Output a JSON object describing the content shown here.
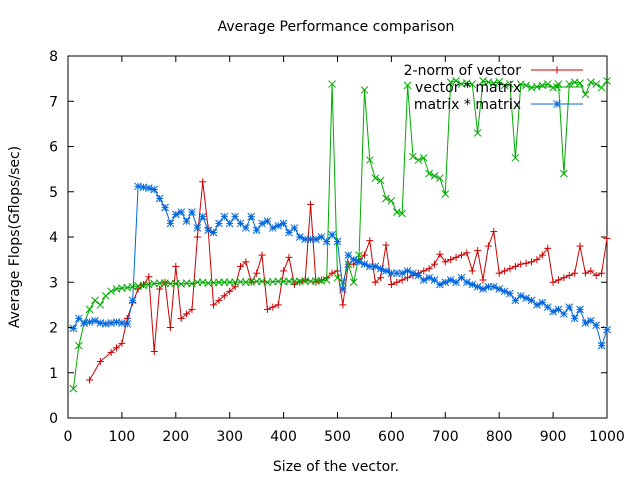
{
  "chart_data": {
    "type": "line",
    "title": "Average Performance comparison",
    "xlabel": "Size of the vector.",
    "ylabel": "Average Flops(Gflops/sec)",
    "xlim": [
      0,
      1000
    ],
    "ylim": [
      0,
      8
    ],
    "x_ticks": [
      0,
      100,
      200,
      300,
      400,
      500,
      600,
      700,
      800,
      900,
      1000
    ],
    "y_ticks": [
      0,
      1,
      2,
      3,
      4,
      5,
      6,
      7,
      8
    ],
    "grid": false,
    "legend_position": "top-right",
    "series": [
      {
        "name": "2-norm of vector",
        "color": "#cc0000",
        "marker": "plus",
        "x": [
          40,
          60,
          80,
          90,
          100,
          110,
          120,
          130,
          140,
          150,
          160,
          170,
          180,
          190,
          200,
          210,
          220,
          230,
          240,
          250,
          260,
          270,
          280,
          290,
          300,
          310,
          320,
          330,
          340,
          350,
          360,
          370,
          380,
          390,
          400,
          410,
          420,
          430,
          440,
          450,
          460,
          470,
          480,
          490,
          500,
          510,
          520,
          530,
          540,
          550,
          560,
          570,
          580,
          590,
          600,
          610,
          620,
          630,
          640,
          650,
          660,
          670,
          680,
          690,
          700,
          710,
          720,
          730,
          740,
          750,
          760,
          770,
          780,
          790,
          800,
          810,
          820,
          830,
          840,
          850,
          860,
          870,
          880,
          890,
          900,
          910,
          920,
          930,
          940,
          950,
          960,
          970,
          980,
          990,
          1000
        ],
        "y": [
          0.84,
          1.25,
          1.45,
          1.55,
          1.65,
          2.2,
          2.55,
          2.85,
          2.95,
          3.12,
          1.47,
          2.85,
          3.0,
          2.0,
          3.35,
          2.2,
          2.3,
          2.4,
          4.0,
          5.22,
          4.2,
          2.5,
          2.6,
          2.7,
          2.8,
          2.9,
          3.35,
          3.45,
          3.0,
          3.2,
          3.6,
          2.4,
          2.45,
          2.5,
          3.25,
          3.55,
          2.95,
          3.0,
          3.05,
          4.72,
          3.0,
          3.05,
          3.1,
          3.2,
          3.25,
          2.5,
          3.4,
          3.4,
          3.5,
          3.6,
          3.92,
          3.0,
          3.1,
          3.82,
          2.95,
          3.0,
          3.05,
          3.1,
          3.15,
          3.2,
          3.25,
          3.3,
          3.4,
          3.62,
          3.45,
          3.5,
          3.55,
          3.6,
          3.65,
          3.25,
          3.7,
          3.05,
          3.8,
          4.12,
          3.2,
          3.25,
          3.3,
          3.35,
          3.4,
          3.42,
          3.45,
          3.5,
          3.6,
          3.75,
          3.0,
          3.05,
          3.1,
          3.15,
          3.2,
          3.8,
          3.2,
          3.25,
          3.15,
          3.2,
          3.97
        ]
      },
      {
        "name": "vector * matrix",
        "color": "#00aa00",
        "marker": "cross",
        "x": [
          10,
          20,
          30,
          40,
          50,
          60,
          70,
          80,
          90,
          100,
          110,
          120,
          130,
          140,
          150,
          160,
          170,
          180,
          190,
          200,
          210,
          220,
          230,
          240,
          250,
          260,
          270,
          280,
          290,
          300,
          310,
          320,
          330,
          340,
          350,
          360,
          370,
          380,
          390,
          400,
          410,
          420,
          430,
          440,
          450,
          460,
          470,
          480,
          490,
          500,
          510,
          520,
          530,
          540,
          550,
          560,
          570,
          580,
          590,
          600,
          610,
          620,
          630,
          640,
          650,
          660,
          670,
          680,
          690,
          700,
          710,
          720,
          730,
          740,
          750,
          760,
          770,
          780,
          790,
          800,
          810,
          820,
          830,
          840,
          850,
          860,
          870,
          880,
          890,
          900,
          910,
          920,
          930,
          940,
          950,
          960,
          970,
          980,
          990,
          1000
        ],
        "y": [
          0.65,
          1.6,
          2.1,
          2.4,
          2.6,
          2.5,
          2.7,
          2.8,
          2.85,
          2.87,
          2.88,
          2.9,
          2.92,
          2.93,
          2.95,
          2.97,
          2.98,
          2.98,
          2.97,
          2.97,
          2.96,
          2.98,
          2.97,
          3.0,
          3.0,
          2.98,
          2.99,
          3.0,
          3.0,
          3.0,
          3.0,
          3.01,
          3.0,
          3.01,
          3.02,
          3.02,
          3.0,
          3.01,
          3.02,
          3.02,
          3.02,
          3.02,
          3.02,
          3.03,
          3.02,
          3.03,
          3.03,
          3.05,
          7.38,
          3.1,
          3.0,
          3.4,
          3.0,
          3.6,
          7.25,
          5.7,
          5.3,
          5.25,
          4.85,
          4.8,
          4.55,
          4.52,
          7.35,
          5.78,
          5.7,
          5.75,
          5.4,
          5.35,
          5.3,
          4.95,
          7.42,
          7.45,
          7.38,
          7.4,
          7.38,
          6.3,
          7.45,
          7.42,
          7.4,
          7.43,
          7.35,
          7.38,
          5.75,
          7.38,
          7.35,
          7.3,
          7.32,
          7.35,
          7.38,
          7.3,
          7.38,
          5.4,
          7.38,
          7.42,
          7.4,
          7.15,
          7.42,
          7.38,
          7.3,
          7.45
        ]
      },
      {
        "name": "matrix * matrix",
        "color": "#0066dd",
        "marker": "star",
        "x": [
          10,
          20,
          30,
          40,
          50,
          60,
          70,
          80,
          90,
          100,
          110,
          120,
          130,
          140,
          150,
          160,
          170,
          180,
          190,
          200,
          210,
          220,
          230,
          240,
          250,
          260,
          270,
          280,
          290,
          300,
          310,
          320,
          330,
          340,
          350,
          360,
          370,
          380,
          390,
          400,
          410,
          420,
          430,
          440,
          450,
          460,
          470,
          480,
          490,
          500,
          510,
          520,
          530,
          540,
          550,
          560,
          570,
          580,
          590,
          600,
          610,
          620,
          630,
          640,
          650,
          660,
          670,
          680,
          690,
          700,
          710,
          720,
          730,
          740,
          750,
          760,
          770,
          780,
          790,
          800,
          810,
          820,
          830,
          840,
          850,
          860,
          870,
          880,
          890,
          900,
          910,
          920,
          930,
          940,
          950,
          960,
          970,
          980,
          990,
          1000
        ],
        "y": [
          1.98,
          2.2,
          2.1,
          2.12,
          2.15,
          2.1,
          2.08,
          2.1,
          2.12,
          2.1,
          2.08,
          2.6,
          5.12,
          5.1,
          5.08,
          5.05,
          4.85,
          4.65,
          4.3,
          4.5,
          4.55,
          4.35,
          4.55,
          4.2,
          4.45,
          4.15,
          4.1,
          4.3,
          4.45,
          4.3,
          4.45,
          4.3,
          4.2,
          4.45,
          4.15,
          4.3,
          4.35,
          4.2,
          4.25,
          4.3,
          4.1,
          4.2,
          4.0,
          3.95,
          3.95,
          3.95,
          4.0,
          3.9,
          4.05,
          3.9,
          2.85,
          3.6,
          3.5,
          3.45,
          3.4,
          3.35,
          3.35,
          3.3,
          3.25,
          3.2,
          3.2,
          3.2,
          3.25,
          3.2,
          3.15,
          3.05,
          3.1,
          3.05,
          2.95,
          3.0,
          3.05,
          3.0,
          3.1,
          3.0,
          2.95,
          2.9,
          2.85,
          2.9,
          2.9,
          2.85,
          2.8,
          2.75,
          2.6,
          2.7,
          2.65,
          2.6,
          2.5,
          2.55,
          2.45,
          2.35,
          2.4,
          2.3,
          2.45,
          2.2,
          2.4,
          2.1,
          2.15,
          2.05,
          1.6,
          1.95
        ]
      }
    ]
  }
}
